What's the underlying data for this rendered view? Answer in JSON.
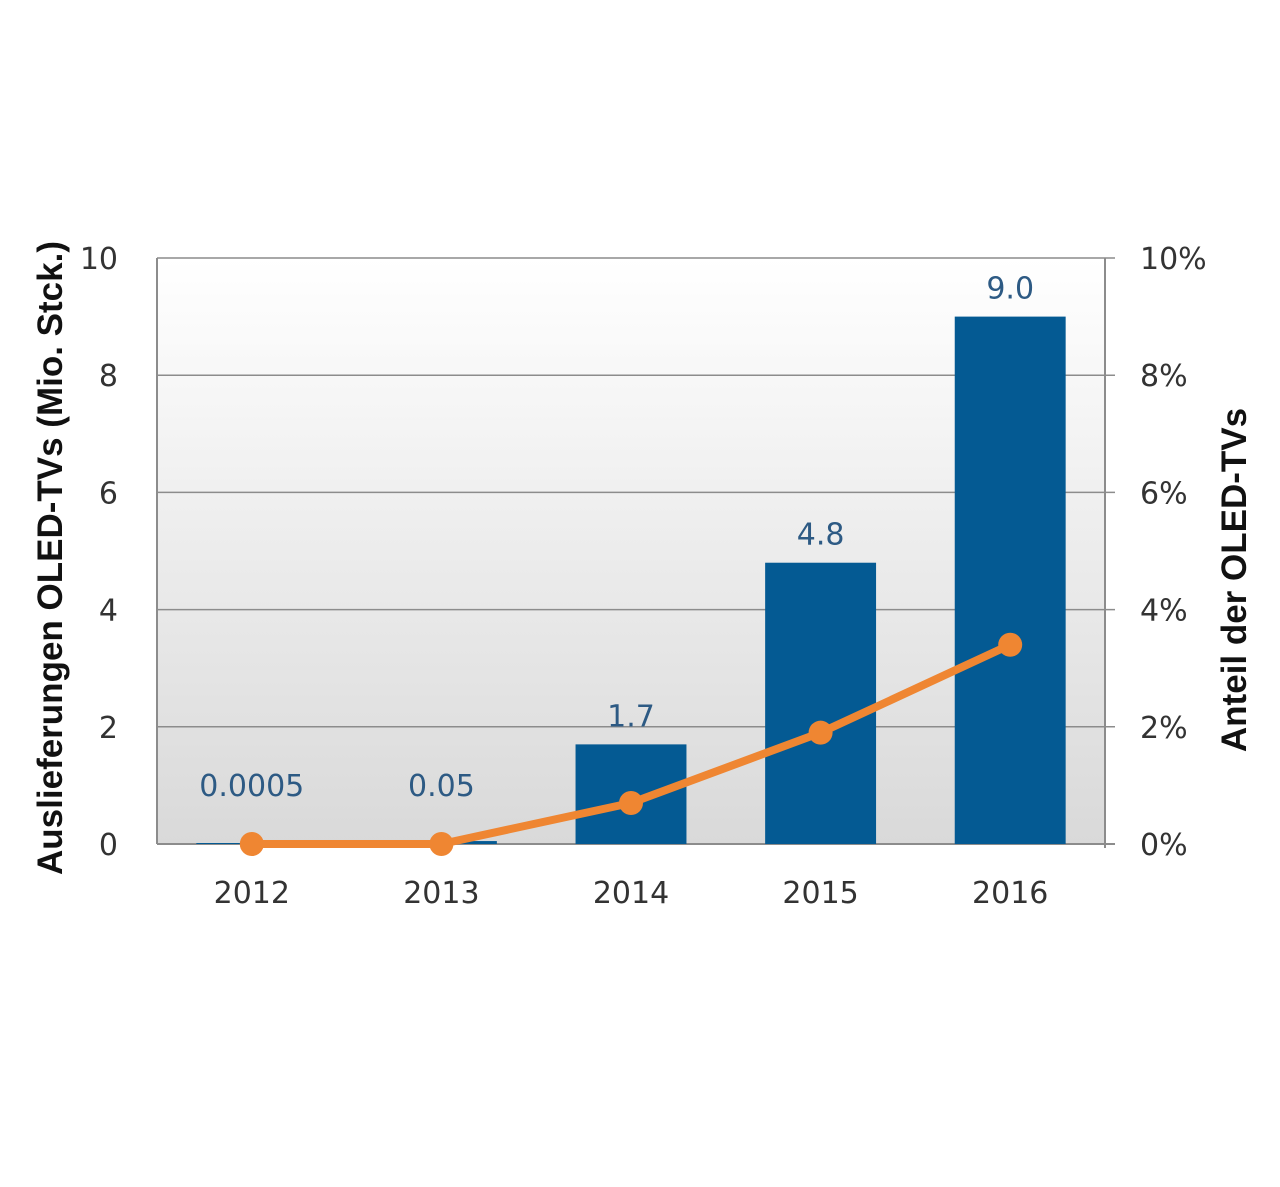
{
  "chart_data": {
    "type": "bar",
    "categories": [
      "2012",
      "2013",
      "2014",
      "2015",
      "2016"
    ],
    "series": [
      {
        "type": "bar",
        "axis": "left",
        "values": [
          0.0005,
          0.05,
          1.7,
          4.8,
          9.0
        ],
        "labels": [
          "0.0005",
          "0.05",
          "1.7",
          "4.8",
          "9.0"
        ],
        "color": "#045a93"
      },
      {
        "type": "line",
        "axis": "right",
        "values": [
          0.0,
          0.0,
          0.7,
          1.9,
          3.4
        ],
        "color": "#ef8632"
      }
    ],
    "ylabel": "Auslieferungen OLED-TVs  (Mio. Stck.)",
    "ylabel_right": "Anteil  der OLED-TVs",
    "ylim": [
      0,
      10
    ],
    "yticks": [
      "0",
      "2",
      "4",
      "6",
      "8",
      "10"
    ],
    "ylim_right": [
      0,
      10
    ],
    "yticks_right": [
      "0%",
      "2%",
      "4%",
      "6%",
      "8%",
      "10%"
    ],
    "grid": true,
    "legend": "none"
  }
}
